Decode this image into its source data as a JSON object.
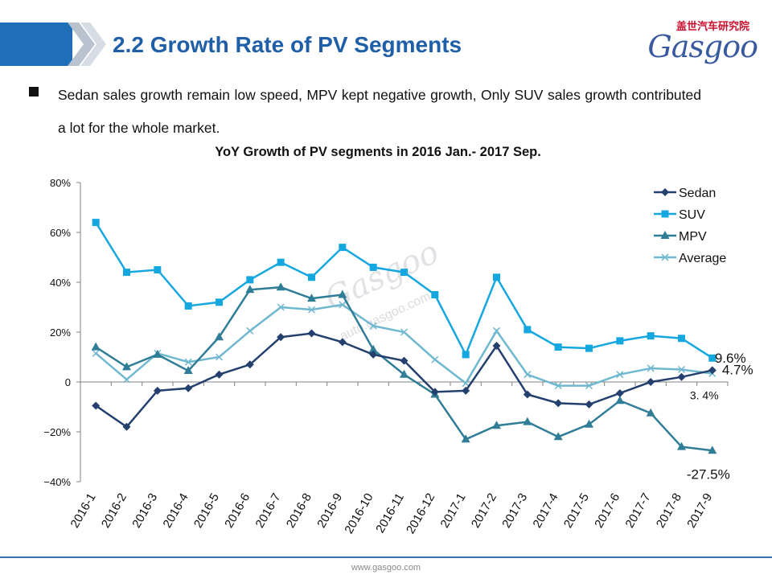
{
  "header": {
    "title": "2.2 Growth Rate of PV Segments",
    "logo_cn": "盖世汽车研究院",
    "logo_en": "Gasgoo",
    "watermark": "Gasgoo",
    "watermark_url": "auto.gasgoo.com"
  },
  "bullet_text": "Sedan sales growth remain low speed, MPV kept negative growth, Only SUV sales growth contributed a lot for the whole market.",
  "footer": "www.gasgoo.com",
  "chart_data": {
    "type": "line",
    "title": "YoY Growth of PV segments in 2016 Jan.- 2017 Sep.",
    "xlabel": "",
    "ylabel": "",
    "ylim": [
      -40,
      80
    ],
    "yticks": [
      80,
      60,
      40,
      20,
      0,
      -20,
      -40
    ],
    "ytick_labels": [
      "80%",
      "60%",
      "40%",
      "20%",
      "0",
      "−20%",
      "−40%"
    ],
    "grid": false,
    "legend_position": "top-right",
    "categories": [
      "2016-1",
      "2016-2",
      "2016-3",
      "2016-4",
      "2016-5",
      "2016-6",
      "2016-7",
      "2016-8",
      "2016-9",
      "2016-10",
      "2016-11",
      "2016-12",
      "2017-1",
      "2017-2",
      "2017-3",
      "2017-4",
      "2017-5",
      "2017-6",
      "2017-7",
      "2017-8",
      "2017-9"
    ],
    "series": [
      {
        "name": "Sedan",
        "color": "#24406e",
        "marker": "diamond",
        "values": [
          -9.5,
          -18,
          -3.5,
          -2.5,
          3,
          7,
          18,
          19.5,
          16,
          11,
          8.5,
          -4,
          -3.5,
          14.5,
          -5,
          -8.5,
          -9,
          -4.5,
          0,
          2,
          4.7
        ]
      },
      {
        "name": "SUV",
        "color": "#15a7e0",
        "marker": "square",
        "values": [
          64,
          44,
          45,
          30.5,
          32,
          41,
          48,
          42,
          54,
          46,
          44,
          35,
          11,
          42,
          21,
          14,
          13.5,
          16.5,
          18.5,
          17.5,
          9.6
        ]
      },
      {
        "name": "MPV",
        "color": "#2f7d96",
        "marker": "triangle",
        "values": [
          14,
          6,
          11,
          4.5,
          18,
          37,
          38,
          33.5,
          35,
          13,
          3,
          -5,
          -23,
          -17.5,
          -16,
          -22,
          -17,
          -7.5,
          -12.5,
          -26,
          -27.5
        ]
      },
      {
        "name": "Average",
        "color": "#6fb8cf",
        "marker": "x",
        "values": [
          11.5,
          1,
          11.5,
          8,
          10,
          20.5,
          30,
          29,
          31,
          22.5,
          20,
          9,
          -0.5,
          20.5,
          3,
          -1.5,
          -1.5,
          3,
          5.5,
          5,
          3.4
        ]
      }
    ],
    "annotations": [
      {
        "text": "9.6%",
        "series": "SUV"
      },
      {
        "text": "4.7%",
        "series": "Sedan"
      },
      {
        "text": "3. 4%",
        "series": "Average"
      },
      {
        "text": "-27.5%",
        "series": "MPV"
      }
    ]
  }
}
